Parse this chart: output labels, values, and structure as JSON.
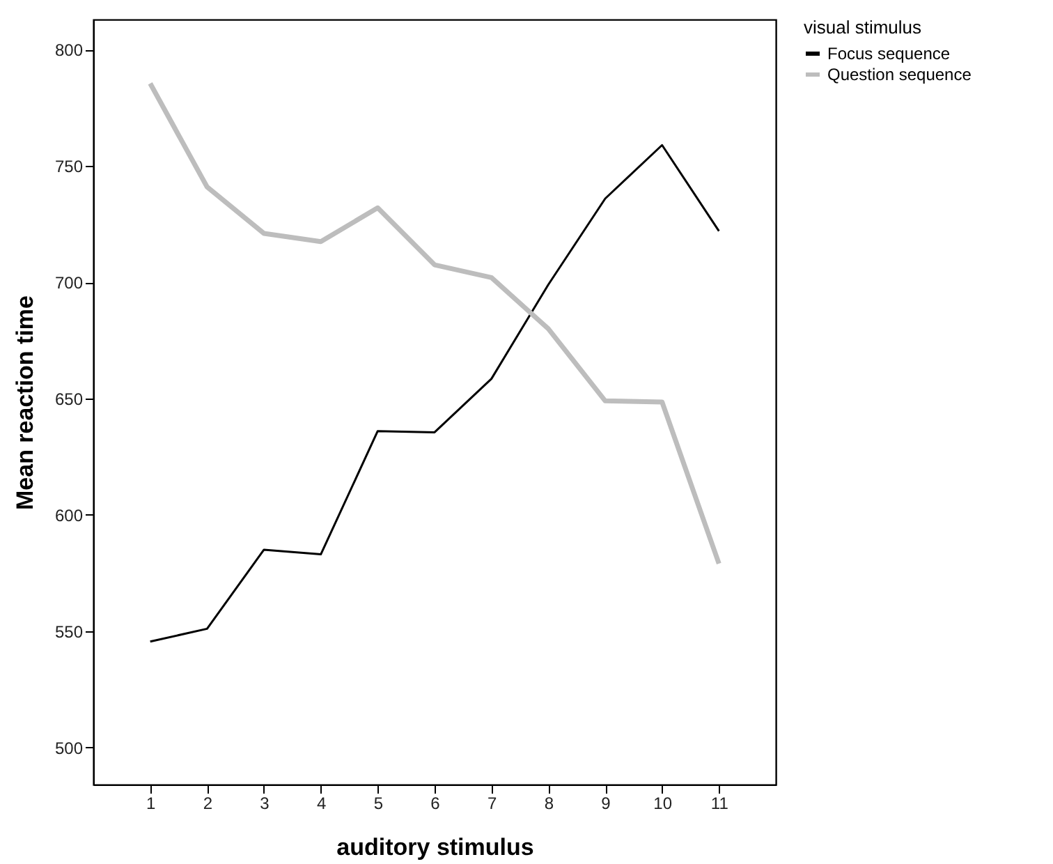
{
  "chart_data": {
    "type": "line",
    "xlabel": "auditory stimulus",
    "ylabel": "Mean reaction time",
    "legend_title": "visual stimulus",
    "categories": [
      "1",
      "2",
      "3",
      "4",
      "5",
      "6",
      "7",
      "8",
      "9",
      "10",
      "11"
    ],
    "series": [
      {
        "name": "Focus sequence",
        "color": "#000000",
        "values": [
          545.5,
          551,
          585,
          583,
          636,
          635.5,
          658.5,
          699,
          736,
          759,
          722
        ]
      },
      {
        "name": "Question sequence",
        "color": "#bdbdbd",
        "values": [
          785.5,
          741,
          721,
          717.5,
          732,
          707.5,
          702,
          680,
          649,
          648.5,
          579
        ]
      }
    ],
    "ylim": [
      484,
      813
    ],
    "yticks": [
      500,
      550,
      600,
      650,
      700,
      750,
      800
    ],
    "grid": false,
    "legend": "top right",
    "marker": "none",
    "line_style": "solid"
  }
}
